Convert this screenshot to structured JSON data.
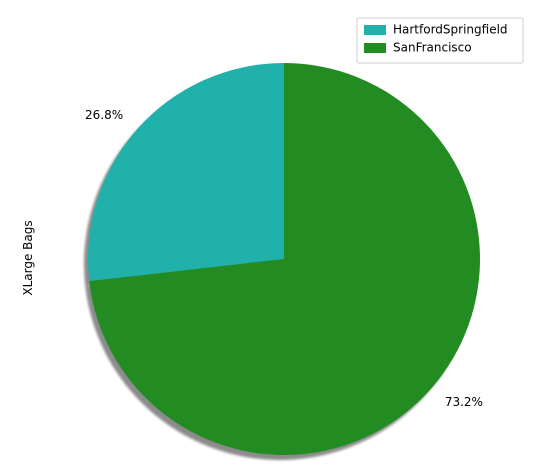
{
  "chart_data": {
    "type": "pie",
    "title": "",
    "ylabel": "XLarge Bags",
    "categories": [
      "HartfordSpringfield",
      "SanFrancisco"
    ],
    "values": [
      26.8,
      73.2
    ],
    "labels": [
      "26.8%",
      "73.2%"
    ],
    "colors": [
      "#20b2aa",
      "#228b22"
    ],
    "start_angle_deg": 90,
    "direction": "counterclockwise",
    "shadow": true,
    "legend": {
      "position": "upper right",
      "entries": [
        "HartfordSpringfield",
        "SanFrancisco"
      ]
    }
  }
}
